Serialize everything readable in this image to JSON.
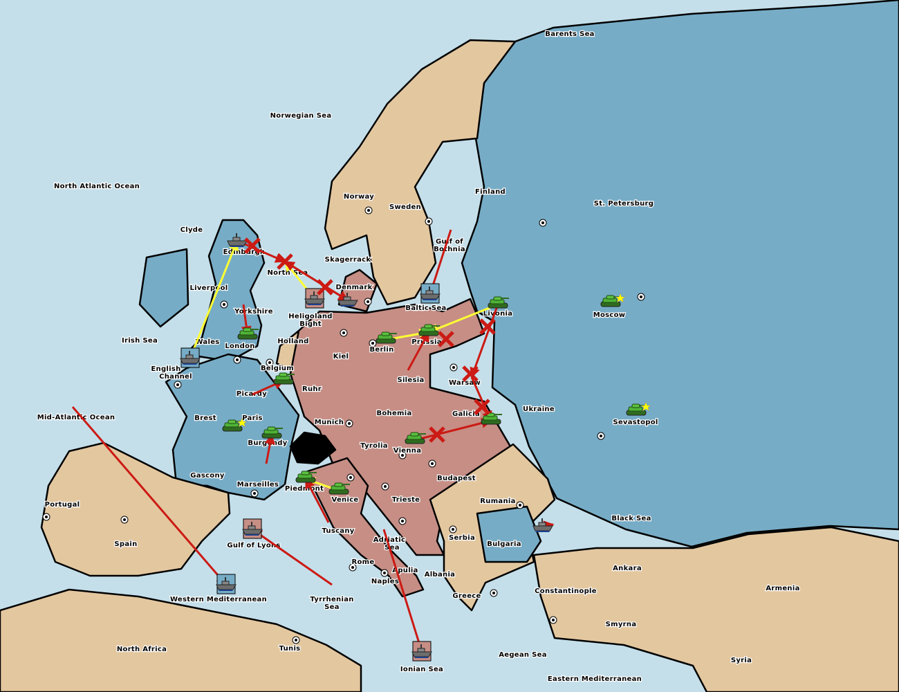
{
  "colors": {
    "sea": "#c4dfea",
    "blue_power": "#77acc6",
    "red_power": "#c68e85",
    "neutral": "#e3c79f",
    "impassable": "#000000",
    "move_success": "#ffff33",
    "move_failed": "#cc1a14"
  },
  "seas": [
    "Barents Sea",
    "Norwegian Sea",
    "North Atlantic Ocean",
    "North Sea",
    "Skagerrack",
    "Heligoland Bight",
    "Baltic Sea",
    "Gulf of Bothnia",
    "Irish Sea",
    "English Channel",
    "Mid-Atlantic Ocean",
    "Western Mediterranean",
    "Gulf of Lyons",
    "Tyrrhenian Sea",
    "Ionian Sea",
    "Adriatic Sea",
    "Aegean Sea",
    "Eastern Mediterranean",
    "Black Sea"
  ],
  "lands": [
    "Norway",
    "Sweden",
    "Finland",
    "St. Petersburg",
    "Moscow",
    "Livonia",
    "Warsaw",
    "Ukraine",
    "Sevastopol",
    "Clyde",
    "Edinburgh",
    "Liverpool",
    "Yorkshire",
    "Wales",
    "London",
    "Denmark",
    "Holland",
    "Belgium",
    "Kiel",
    "Berlin",
    "Prussia",
    "Silesia",
    "Ruhr",
    "Munich",
    "Bohemia",
    "Galicia",
    "Tyrolia",
    "Vienna",
    "Budapest",
    "Trieste",
    "Picardy",
    "Brest",
    "Paris",
    "Burgundy",
    "Gascony",
    "Marseilles",
    "Piedmont",
    "Venice",
    "Tuscany",
    "Rome",
    "Apulia",
    "Naples",
    "Portugal",
    "Spain",
    "North Africa",
    "Tunis",
    "Rumania",
    "Serbia",
    "Bulgaria",
    "Albania",
    "Greece",
    "Constantinople",
    "Ankara",
    "Armenia",
    "Smyrna",
    "Syria"
  ],
  "units": [
    {
      "type": "fleet",
      "power": "blue",
      "at": "Edinburgh"
    },
    {
      "type": "fleet",
      "power": "red",
      "at": "Heligoland Bight",
      "dislodged": true
    },
    {
      "type": "fleet",
      "power": "blue",
      "at": "Denmark"
    },
    {
      "type": "fleet",
      "power": "blue",
      "at": "Baltic Sea",
      "dislodged": true
    },
    {
      "type": "army",
      "power": "blue",
      "at": "Livonia"
    },
    {
      "type": "army",
      "power": "blue",
      "at": "Moscow",
      "star": true
    },
    {
      "type": "army",
      "power": "red",
      "at": "Prussia"
    },
    {
      "type": "army",
      "power": "red",
      "at": "Berlin"
    },
    {
      "type": "army",
      "power": "blue",
      "at": "London"
    },
    {
      "type": "fleet",
      "power": "blue",
      "at": "English Channel",
      "dislodged": true
    },
    {
      "type": "army",
      "power": "blue",
      "at": "Belgium"
    },
    {
      "type": "army",
      "power": "blue",
      "at": "Paris",
      "star": true
    },
    {
      "type": "army",
      "power": "blue",
      "at": "Burgundy"
    },
    {
      "type": "army",
      "power": "red",
      "at": "Vienna"
    },
    {
      "type": "army",
      "power": "blue",
      "at": "Galicia"
    },
    {
      "type": "army",
      "power": "blue",
      "at": "Sevastopol",
      "star": true
    },
    {
      "type": "army",
      "power": "red",
      "at": "Piedmont"
    },
    {
      "type": "army",
      "power": "red",
      "at": "Venice"
    },
    {
      "type": "fleet",
      "power": "blue",
      "at": "Black Sea"
    },
    {
      "type": "fleet",
      "power": "red",
      "at": "Gulf of Lyons",
      "dislodged": true
    },
    {
      "type": "fleet",
      "power": "blue",
      "at": "Western Mediterranean",
      "dislodged": true
    },
    {
      "type": "fleet",
      "power": "red",
      "at": "Ionian Sea",
      "dislodged": true
    }
  ],
  "orders": [
    {
      "from": "Wales",
      "to": "Edinburgh",
      "result": "success"
    },
    {
      "from": "Heligoland Bight",
      "to": "North Sea",
      "result": "success"
    },
    {
      "from": "Berlin",
      "to": "Prussia",
      "result": "success"
    },
    {
      "from": "Livonia",
      "to": "Prussia",
      "result": "success"
    },
    {
      "from": "Venice",
      "to": "Piedmont",
      "result": "success"
    },
    {
      "from": "Edinburgh",
      "to": "North Sea",
      "result": "failed"
    },
    {
      "from": "Denmark",
      "to": "North Sea",
      "result": "failed"
    },
    {
      "from": "North Sea",
      "to": "Denmark",
      "result": "failed"
    },
    {
      "from": "Yorkshire",
      "to": "London",
      "result": "failed"
    },
    {
      "from": "Mid-Atlantic Ocean",
      "to": "Western Mediterranean",
      "result": "failed"
    },
    {
      "from": "Vienna",
      "to": "Galicia",
      "result": "failed"
    },
    {
      "from": "Warsaw",
      "to": "Galicia",
      "result": "failed"
    },
    {
      "from": "Livonia",
      "to": "Warsaw",
      "result": "failed"
    },
    {
      "from": "Black Sea",
      "to": "Bulgaria",
      "result": "failed"
    },
    {
      "from": "Tyrrhenian Sea",
      "to": "Gulf of Lyons",
      "result": "failed"
    },
    {
      "from": "Adriatic Sea",
      "to": "Ionian Sea",
      "result": "failed"
    },
    {
      "from": "Tuscany",
      "to": "Piedmont",
      "result": "failed"
    },
    {
      "from": "Gulf of Bothnia",
      "to": "Baltic Sea",
      "result": "failed"
    },
    {
      "from": "Picardy",
      "to": "Belgium",
      "result": "failed"
    },
    {
      "from": "Marseilles",
      "to": "Burgundy",
      "result": "failed"
    },
    {
      "from": "Silesia",
      "to": "Prussia",
      "result": "failed"
    }
  ],
  "bounces": [
    "Edinburgh",
    "North Sea",
    "Heligoland Bight",
    "Livonia",
    "Warsaw",
    "Galicia",
    "Vienna",
    "Prussia"
  ]
}
